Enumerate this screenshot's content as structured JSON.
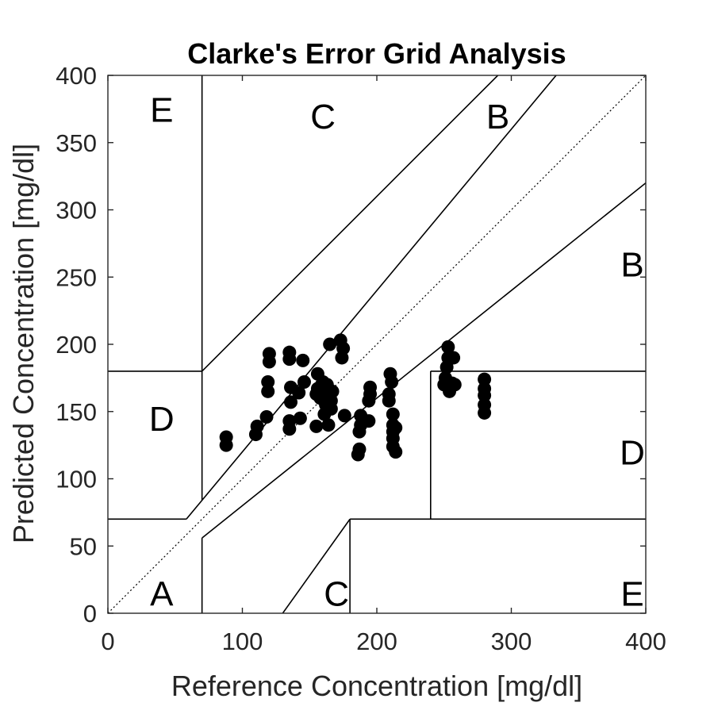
{
  "chart_data": {
    "type": "scatter",
    "title": "Clarke's Error Grid Analysis",
    "xlabel": "Reference Concentration [mg/dl]",
    "ylabel": "Predicted Concentration [mg/dl]",
    "xlim": [
      0,
      400
    ],
    "ylim": [
      0,
      400
    ],
    "xticks": [
      0,
      100,
      200,
      300,
      400
    ],
    "yticks": [
      0,
      50,
      100,
      150,
      200,
      250,
      300,
      350,
      400
    ],
    "grid": false,
    "zone_lines": [
      [
        [
          0,
          0
        ],
        [
          400,
          400
        ]
      ],
      [
        [
          0,
          70
        ],
        [
          58.33,
          70
        ]
      ],
      [
        [
          58.33,
          70
        ],
        [
          333.33,
          400
        ]
      ],
      [
        [
          70,
          56
        ],
        [
          400,
          320
        ]
      ],
      [
        [
          70,
          180
        ],
        [
          290,
          400
        ]
      ],
      [
        [
          70,
          0
        ],
        [
          70,
          56
        ]
      ],
      [
        [
          70,
          84
        ],
        [
          70,
          400
        ]
      ],
      [
        [
          0,
          180
        ],
        [
          70,
          180
        ]
      ],
      [
        [
          240,
          70
        ],
        [
          240,
          180
        ]
      ],
      [
        [
          240,
          180
        ],
        [
          400,
          180
        ]
      ],
      [
        [
          180,
          70
        ],
        [
          400,
          70
        ]
      ],
      [
        [
          180,
          0
        ],
        [
          180,
          70
        ]
      ],
      [
        [
          130,
          0
        ],
        [
          180,
          70
        ]
      ]
    ],
    "zone_labels": [
      {
        "text": "A",
        "x": 40,
        "y": 15
      },
      {
        "text": "B",
        "x": 290,
        "y": 370
      },
      {
        "text": "B",
        "x": 390,
        "y": 260
      },
      {
        "text": "C",
        "x": 160,
        "y": 370
      },
      {
        "text": "C",
        "x": 170,
        "y": 15
      },
      {
        "text": "D",
        "x": 40,
        "y": 145
      },
      {
        "text": "D",
        "x": 390,
        "y": 120
      },
      {
        "text": "E",
        "x": 40,
        "y": 375
      },
      {
        "text": "E",
        "x": 390,
        "y": 15
      }
    ],
    "points": [
      [
        88,
        125
      ],
      [
        88,
        131
      ],
      [
        110,
        133
      ],
      [
        111,
        139
      ],
      [
        118,
        146
      ],
      [
        119,
        165
      ],
      [
        119,
        172
      ],
      [
        120,
        187
      ],
      [
        120,
        193
      ],
      [
        135,
        137
      ],
      [
        135,
        143
      ],
      [
        136,
        157
      ],
      [
        136,
        168
      ],
      [
        135,
        189
      ],
      [
        135,
        194
      ],
      [
        142,
        164
      ],
      [
        143,
        145
      ],
      [
        145,
        188
      ],
      [
        146,
        172
      ],
      [
        155,
        139
      ],
      [
        155,
        163
      ],
      [
        156,
        167
      ],
      [
        156,
        178
      ],
      [
        158,
        160
      ],
      [
        159,
        170
      ],
      [
        160,
        172
      ],
      [
        161,
        148
      ],
      [
        162,
        155
      ],
      [
        162,
        163
      ],
      [
        163,
        170
      ],
      [
        164,
        140
      ],
      [
        165,
        200
      ],
      [
        166,
        152
      ],
      [
        166,
        158
      ],
      [
        167,
        165
      ],
      [
        173,
        203
      ],
      [
        174,
        190
      ],
      [
        175,
        197
      ],
      [
        176,
        147
      ],
      [
        186,
        118
      ],
      [
        187,
        122
      ],
      [
        187,
        135
      ],
      [
        188,
        140
      ],
      [
        188,
        147
      ],
      [
        194,
        143
      ],
      [
        194,
        158
      ],
      [
        195,
        163
      ],
      [
        195,
        168
      ],
      [
        209,
        158
      ],
      [
        209,
        163
      ],
      [
        210,
        178
      ],
      [
        211,
        172
      ],
      [
        212,
        124
      ],
      [
        212,
        130
      ],
      [
        212,
        135
      ],
      [
        212,
        140
      ],
      [
        212,
        148
      ],
      [
        214,
        120
      ],
      [
        214,
        138
      ],
      [
        250,
        170
      ],
      [
        251,
        175
      ],
      [
        252,
        183
      ],
      [
        253,
        190
      ],
      [
        253,
        198
      ],
      [
        254,
        165
      ],
      [
        256,
        171
      ],
      [
        257,
        190
      ],
      [
        258,
        170
      ],
      [
        280,
        149
      ],
      [
        280,
        155
      ],
      [
        280,
        162
      ],
      [
        280,
        167
      ],
      [
        280,
        174
      ]
    ]
  }
}
